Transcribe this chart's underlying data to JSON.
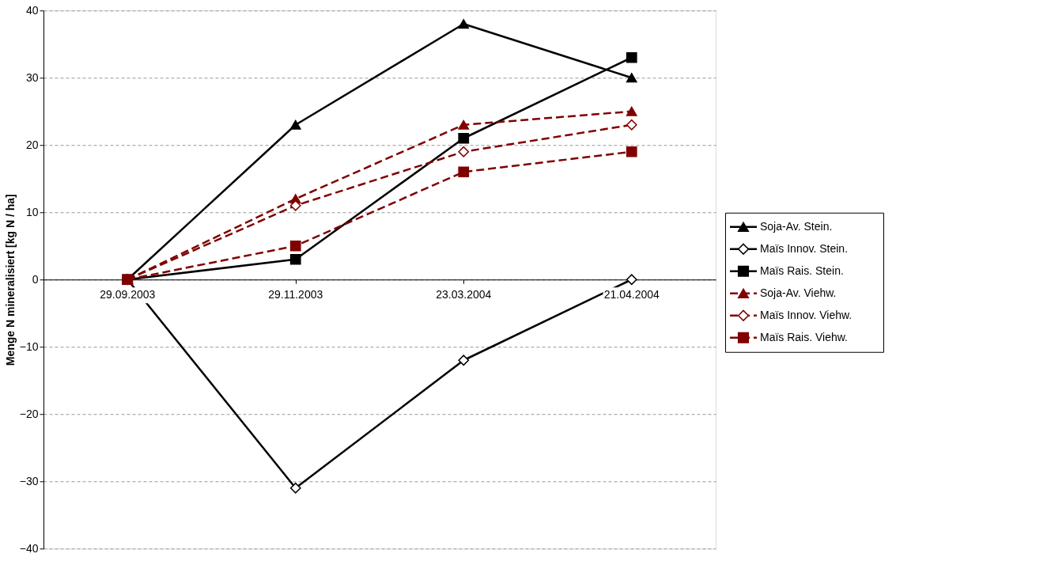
{
  "chart_data": {
    "type": "line",
    "ylabel": "Menge N mineralisiert [kg N / ha]",
    "categories": [
      "29.09.2003",
      "29.11.2003",
      "23.03.2004",
      "21.04.2004"
    ],
    "ylim": [
      -40,
      40
    ],
    "yticks": [
      -40,
      -30,
      -20,
      -10,
      0,
      10,
      20,
      30,
      40
    ],
    "grid": "y",
    "legend": "right",
    "series": [
      {
        "name": "Soja-Av. Stein.",
        "color": "#000000",
        "marker": "triangle",
        "line_style": "solid",
        "values": [
          0,
          23,
          38,
          30
        ]
      },
      {
        "name": "Maïs Innov. Stein.",
        "color": "#000000",
        "marker": "diamond",
        "line_style": "solid",
        "values": [
          0,
          -31,
          -12,
          0
        ]
      },
      {
        "name": "Maïs Rais. Stein.",
        "color": "#000000",
        "marker": "square",
        "line_style": "solid",
        "values": [
          0,
          3,
          21,
          33
        ]
      },
      {
        "name": "Soja-Av. Viehw.",
        "color": "#800000",
        "marker": "triangle",
        "line_style": "dashed",
        "values": [
          0,
          12,
          23,
          25
        ]
      },
      {
        "name": "Maïs Innov. Viehw.",
        "color": "#800000",
        "marker": "diamond",
        "line_style": "dashed",
        "values": [
          0,
          11,
          19,
          23
        ]
      },
      {
        "name": "Maïs Rais. Viehw.",
        "color": "#800000",
        "marker": "square",
        "line_style": "dashed",
        "values": [
          0,
          5,
          16,
          19
        ]
      }
    ]
  }
}
